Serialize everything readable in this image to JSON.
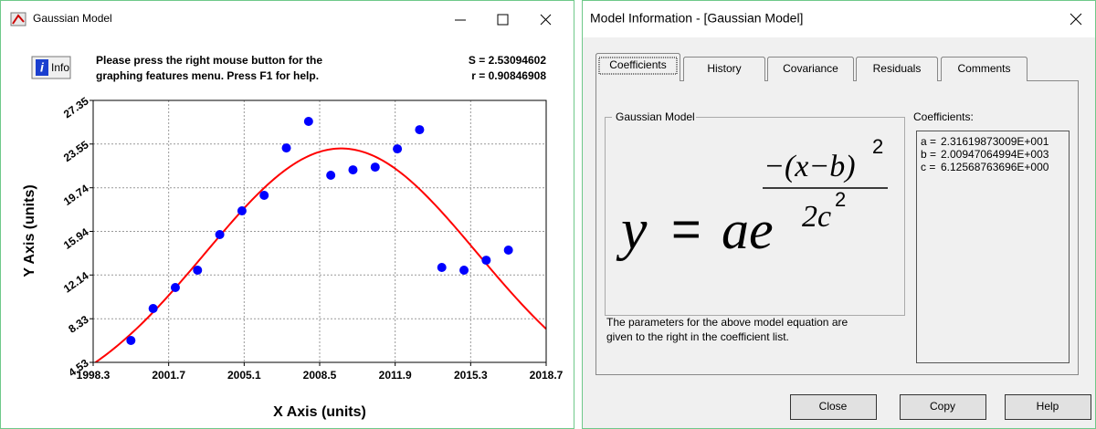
{
  "window": {
    "title": "Gaussian Model",
    "info_button": "Info",
    "message": [
      "Please press the right mouse button for the",
      "graphing features menu.  Press F1 for help."
    ],
    "stats": [
      "S = 2.53094602",
      "r = 0.90846908"
    ]
  },
  "chart_data": {
    "type": "scatter",
    "x_label": "X Axis (units)",
    "y_label": "Y Axis (units)",
    "x": [
      2000,
      2001,
      2002,
      2003,
      2004,
      2005,
      2006,
      2007,
      2008,
      2009,
      2010,
      2011,
      2012,
      2013,
      2014,
      2015,
      2016,
      2017
    ],
    "series": [
      {
        "color": "#0000ff",
        "values": [
          6.44,
          9.22,
          11.05,
          12.56,
          15.66,
          17.73,
          19.08,
          23.21,
          25.52,
          20.83,
          21.3,
          21.54,
          23.13,
          24.8,
          12.8,
          12.56,
          13.43,
          14.31
        ]
      }
    ],
    "fit_color": "#ff0000",
    "xlim": [
      1998.3,
      2018.7
    ],
    "ylim": [
      4.53,
      27.35
    ],
    "xticks": [
      1998.3,
      2001.7,
      2005.1,
      2008.5,
      2011.9,
      2015.3,
      2018.7
    ],
    "yticks": [
      4.53,
      8.33,
      12.14,
      15.94,
      19.74,
      23.55,
      27.35
    ],
    "grid": true
  },
  "model_info": {
    "title": "Model Information - [Gaussian Model]",
    "tabs": [
      "Coefficients",
      "History",
      "Covariance",
      "Residuals",
      "Comments"
    ],
    "selected_tab": 0,
    "group_title": "Gaussian Model",
    "equation": {
      "lhs": "y",
      "equals": "=",
      "rhs": "ae",
      "numerator": "−(x−b)",
      "numerator_power": "2",
      "denominator": "2c",
      "denominator_power": "2"
    },
    "description": [
      "The parameters for the above model equation are",
      "given to the right in the coefficient list."
    ],
    "coefficients_label": "Coefficients:",
    "coefficients": [
      {
        "name": "a =",
        "value": "2.31619873009E+001"
      },
      {
        "name": "b =",
        "value": "2.00947064994E+003"
      },
      {
        "name": "c =",
        "value": "6.12568763696E+000"
      }
    ],
    "buttons": [
      "Close",
      "Copy",
      "Help"
    ]
  }
}
